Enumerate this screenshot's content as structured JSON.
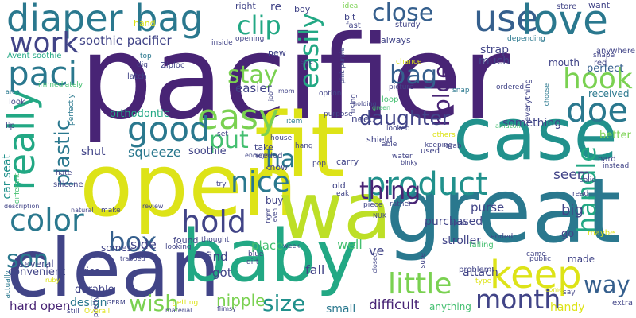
{
  "palette": {
    "purple": "#482475",
    "indigo": "#414487",
    "blue": "#355f8d",
    "teal": "#2a788e",
    "cyan": "#21918c",
    "green": "#22a884",
    "lime": "#7ad151",
    "yellow": "#dde318",
    "darkgreen": "#44bf70"
  },
  "words": [
    {
      "text": "pacifier",
      "color": "#482475"
    },
    {
      "text": "open",
      "color": "#dde318"
    },
    {
      "text": "clean",
      "color": "#414487"
    },
    {
      "text": "fit",
      "color": "#dde318"
    },
    {
      "text": "wa",
      "color": "#bddf26"
    },
    {
      "text": "great",
      "color": "#2a788e"
    },
    {
      "text": "case",
      "color": "#21918c"
    },
    {
      "text": "baby",
      "color": "#22a884"
    },
    {
      "text": "diaper bag",
      "color": "#2a788e"
    },
    {
      "text": "use",
      "color": "#355f8d"
    },
    {
      "text": "love",
      "color": "#2a788e"
    },
    {
      "text": "close",
      "color": "#355f8d"
    },
    {
      "text": "work",
      "color": "#414487"
    },
    {
      "text": "soothie pacifier",
      "color": "#414487"
    },
    {
      "text": "paci",
      "color": "#2a788e"
    },
    {
      "text": "clip",
      "color": "#22a884"
    },
    {
      "text": "easily",
      "color": "#22a884"
    },
    {
      "text": "holder",
      "color": "#482475"
    },
    {
      "text": "bag",
      "color": "#355f8d"
    },
    {
      "text": "hook",
      "color": "#7ad151"
    },
    {
      "text": "stay",
      "color": "#7ad151"
    },
    {
      "text": "easy",
      "color": "#7ad151"
    },
    {
      "text": "really",
      "color": "#22a884"
    },
    {
      "text": "good",
      "color": "#2a788e"
    },
    {
      "text": "doe",
      "color": "#2a788e"
    },
    {
      "text": "put",
      "color": "#44bf70"
    },
    {
      "text": "plastic",
      "color": "#2a788e"
    },
    {
      "text": "daughter",
      "color": "#414487"
    },
    {
      "text": "ha",
      "color": "#2a788e"
    },
    {
      "text": "nice",
      "color": "#2a788e"
    },
    {
      "text": "product",
      "color": "#21918c"
    },
    {
      "text": "thing",
      "color": "#482475"
    },
    {
      "text": "handle",
      "color": "#22a884"
    },
    {
      "text": "color",
      "color": "#2a788e"
    },
    {
      "text": "hold",
      "color": "#414487"
    },
    {
      "text": "box",
      "color": "#355f8d"
    },
    {
      "text": "keep",
      "color": "#dde318"
    },
    {
      "text": "little",
      "color": "#7ad151"
    },
    {
      "text": "son",
      "color": "#2a788e"
    },
    {
      "text": "month",
      "color": "#414487"
    },
    {
      "text": "way",
      "color": "#355f8d"
    },
    {
      "text": "size",
      "color": "#21918c"
    },
    {
      "text": "wish",
      "color": "#7ad151"
    },
    {
      "text": "nipple",
      "color": "#7ad151"
    },
    {
      "text": "hard open",
      "color": "#482475"
    },
    {
      "text": "difficult",
      "color": "#482475"
    },
    {
      "text": "perfect",
      "color": "#355f8d"
    },
    {
      "text": "received",
      "color": "#2a788e"
    },
    {
      "text": "orthodontic",
      "color": "#22a884"
    },
    {
      "text": "easier",
      "color": "#414487"
    },
    {
      "text": "something",
      "color": "#414487"
    },
    {
      "text": "squeeze",
      "color": "#2a788e"
    },
    {
      "text": "soothie",
      "color": "#414487"
    },
    {
      "text": "shut",
      "color": "#414487"
    },
    {
      "text": "car seat",
      "color": "#21918c"
    },
    {
      "text": "big",
      "color": "#414487"
    },
    {
      "text": "seem",
      "color": "#414487"
    },
    {
      "text": "better",
      "color": "#7ad151"
    },
    {
      "text": "purchased",
      "color": "#414487"
    },
    {
      "text": "stroller",
      "color": "#414487"
    },
    {
      "text": "side",
      "color": "#414487"
    },
    {
      "text": "purse",
      "color": "#414487"
    },
    {
      "text": "attach",
      "color": "#414487"
    },
    {
      "text": "fall",
      "color": "#414487"
    },
    {
      "text": "well",
      "color": "#44bf70"
    },
    {
      "text": "ve",
      "color": "#414487"
    },
    {
      "text": "strap",
      "color": "#414487"
    },
    {
      "text": "much",
      "color": "#414487"
    },
    {
      "text": "mouth",
      "color": "#414487"
    },
    {
      "text": "durable",
      "color": "#414487"
    },
    {
      "text": "convenient",
      "color": "#414487"
    },
    {
      "text": "several",
      "color": "#414487"
    },
    {
      "text": "price",
      "color": "#414487"
    },
    {
      "text": "design",
      "color": "#2a788e"
    },
    {
      "text": "find",
      "color": "#414487"
    },
    {
      "text": "got",
      "color": "#414487"
    },
    {
      "text": "place",
      "color": "#44bf70"
    },
    {
      "text": "handy",
      "color": "#dde318"
    },
    {
      "text": "small",
      "color": "#2a788e"
    },
    {
      "text": "anything",
      "color": "#44bf70"
    },
    {
      "text": "go",
      "color": "#414487"
    },
    {
      "text": "made",
      "color": "#414487"
    },
    {
      "text": "right",
      "color": "#414487"
    },
    {
      "text": "re",
      "color": "#414487"
    },
    {
      "text": "boy",
      "color": "#414487"
    },
    {
      "text": "bit",
      "color": "#414487"
    },
    {
      "text": "fast",
      "color": "#414487"
    },
    {
      "text": "idea",
      "color": "#7ad151"
    },
    {
      "text": "always",
      "color": "#414487"
    },
    {
      "text": "sturdy",
      "color": "#414487"
    },
    {
      "text": "store",
      "color": "#414487"
    },
    {
      "text": "want",
      "color": "#414487"
    },
    {
      "text": "hand",
      "color": "#dde318"
    },
    {
      "text": "anywhere",
      "color": "#414487"
    },
    {
      "text": "Avent soothie",
      "color": "#22a884"
    },
    {
      "text": "opening",
      "color": "#414487"
    },
    {
      "text": "inside",
      "color": "#414487"
    },
    {
      "text": "new",
      "color": "#414487"
    },
    {
      "text": "see",
      "color": "#414487"
    },
    {
      "text": "Ziploc",
      "color": "#414487"
    },
    {
      "text": "dig",
      "color": "#414487"
    },
    {
      "text": "latch",
      "color": "#414487"
    },
    {
      "text": "top",
      "color": "#2a788e"
    },
    {
      "text": "option",
      "color": "#414487"
    },
    {
      "text": "using",
      "color": "#414487"
    },
    {
      "text": "pink purple",
      "color": "#414487"
    },
    {
      "text": "picture",
      "color": "#414487"
    },
    {
      "text": "chance",
      "color": "#dde318"
    },
    {
      "text": "depending",
      "color": "#2a788e"
    },
    {
      "text": "shape",
      "color": "#414487"
    },
    {
      "text": "red",
      "color": "#414487"
    },
    {
      "text": "ordered",
      "color": "#414487"
    },
    {
      "text": "everything",
      "color": "#414487"
    },
    {
      "text": "choose",
      "color": "#2a788e"
    },
    {
      "text": "snap",
      "color": "#2a788e"
    },
    {
      "text": "holding",
      "color": "#414487"
    },
    {
      "text": "green",
      "color": "#44bf70"
    },
    {
      "text": "loop",
      "color": "#44bf70"
    },
    {
      "text": "area",
      "color": "#2a788e"
    },
    {
      "text": "immediately",
      "color": "#44bf70"
    },
    {
      "text": "look",
      "color": "#414487"
    },
    {
      "text": "perfectly",
      "color": "#2a788e"
    },
    {
      "text": "lip",
      "color": "#414487"
    },
    {
      "text": "job",
      "color": "#414487"
    },
    {
      "text": "mom",
      "color": "#414487"
    },
    {
      "text": "item",
      "color": "#2a788e"
    },
    {
      "text": "purpose",
      "color": "#414487"
    },
    {
      "text": "need",
      "color": "#414487"
    },
    {
      "text": "looked",
      "color": "#414487"
    },
    {
      "text": "shield",
      "color": "#414487"
    },
    {
      "text": "amazon",
      "color": "#44bf70"
    },
    {
      "text": "others",
      "color": "#dde318"
    },
    {
      "text": "keeping",
      "color": "#414487"
    },
    {
      "text": "grab",
      "color": "#414487"
    },
    {
      "text": "instead",
      "color": "#414487"
    },
    {
      "text": "hard",
      "color": "#414487"
    },
    {
      "text": "set",
      "color": "#414487"
    },
    {
      "text": "house",
      "color": "#414487"
    },
    {
      "text": "needed",
      "color": "#414487"
    },
    {
      "text": "take",
      "color": "#414487"
    },
    {
      "text": "know",
      "color": "#414487"
    },
    {
      "text": "hang",
      "color": "#414487"
    },
    {
      "text": "enough",
      "color": "#414487"
    },
    {
      "text": "pop",
      "color": "#414487"
    },
    {
      "text": "carry",
      "color": "#414487"
    },
    {
      "text": "water",
      "color": "#414487"
    },
    {
      "text": "binky",
      "color": "#414487"
    },
    {
      "text": "able",
      "color": "#414487"
    },
    {
      "text": "used",
      "color": "#414487"
    },
    {
      "text": "hate",
      "color": "#414487"
    },
    {
      "text": "silicone",
      "color": "#414487"
    },
    {
      "text": "different",
      "color": "#44bf70"
    },
    {
      "text": "description",
      "color": "#414487"
    },
    {
      "text": "natural",
      "color": "#414487"
    },
    {
      "text": "make",
      "color": "#414487"
    },
    {
      "text": "review",
      "color": "#414487"
    },
    {
      "text": "try",
      "color": "#414487"
    },
    {
      "text": "buy",
      "color": "#414487"
    },
    {
      "text": "tight",
      "color": "#414487"
    },
    {
      "text": "even",
      "color": "#414487"
    },
    {
      "text": "old",
      "color": "#414487"
    },
    {
      "text": "eak",
      "color": "#414487"
    },
    {
      "text": "piece",
      "color": "#414487"
    },
    {
      "text": "rather",
      "color": "#414487"
    },
    {
      "text": "solid",
      "color": "#414487"
    },
    {
      "text": "read",
      "color": "#414487"
    },
    {
      "text": "somes",
      "color": "#414487"
    },
    {
      "text": "trapped",
      "color": "#414487"
    },
    {
      "text": "found",
      "color": "#414487"
    },
    {
      "text": "looking",
      "color": "#414487"
    },
    {
      "text": "thought",
      "color": "#414487"
    },
    {
      "text": "blue",
      "color": "#414487"
    },
    {
      "text": "week",
      "color": "#414487"
    },
    {
      "text": "space",
      "color": "#414487"
    },
    {
      "text": "falling",
      "color": "#44bf70"
    },
    {
      "text": "ended",
      "color": "#414487"
    },
    {
      "text": "maybe",
      "color": "#dde318"
    },
    {
      "text": "came",
      "color": "#414487"
    },
    {
      "text": "public",
      "color": "#414487"
    },
    {
      "text": "problem",
      "color": "#414487"
    },
    {
      "text": "actually",
      "color": "#2a788e"
    },
    {
      "text": "ruby",
      "color": "#dde318"
    },
    {
      "text": "pretty",
      "color": "#414487"
    },
    {
      "text": "dirt",
      "color": "#414487"
    },
    {
      "text": "NUK",
      "color": "#414487"
    },
    {
      "text": "closed",
      "color": "#414487"
    },
    {
      "text": "sure",
      "color": "#414487"
    },
    {
      "text": "type",
      "color": "#dde318"
    },
    {
      "text": "come",
      "color": "#dde318"
    },
    {
      "text": "say",
      "color": "#414487"
    },
    {
      "text": "extra",
      "color": "#414487"
    },
    {
      "text": "GERM",
      "color": "#414487"
    },
    {
      "text": "getting",
      "color": "#dde318"
    },
    {
      "text": "material",
      "color": "#414487"
    },
    {
      "text": "flimsy",
      "color": "#414487"
    },
    {
      "text": "still",
      "color": "#414487"
    },
    {
      "text": "Overall",
      "color": "#dde318"
    }
  ]
}
